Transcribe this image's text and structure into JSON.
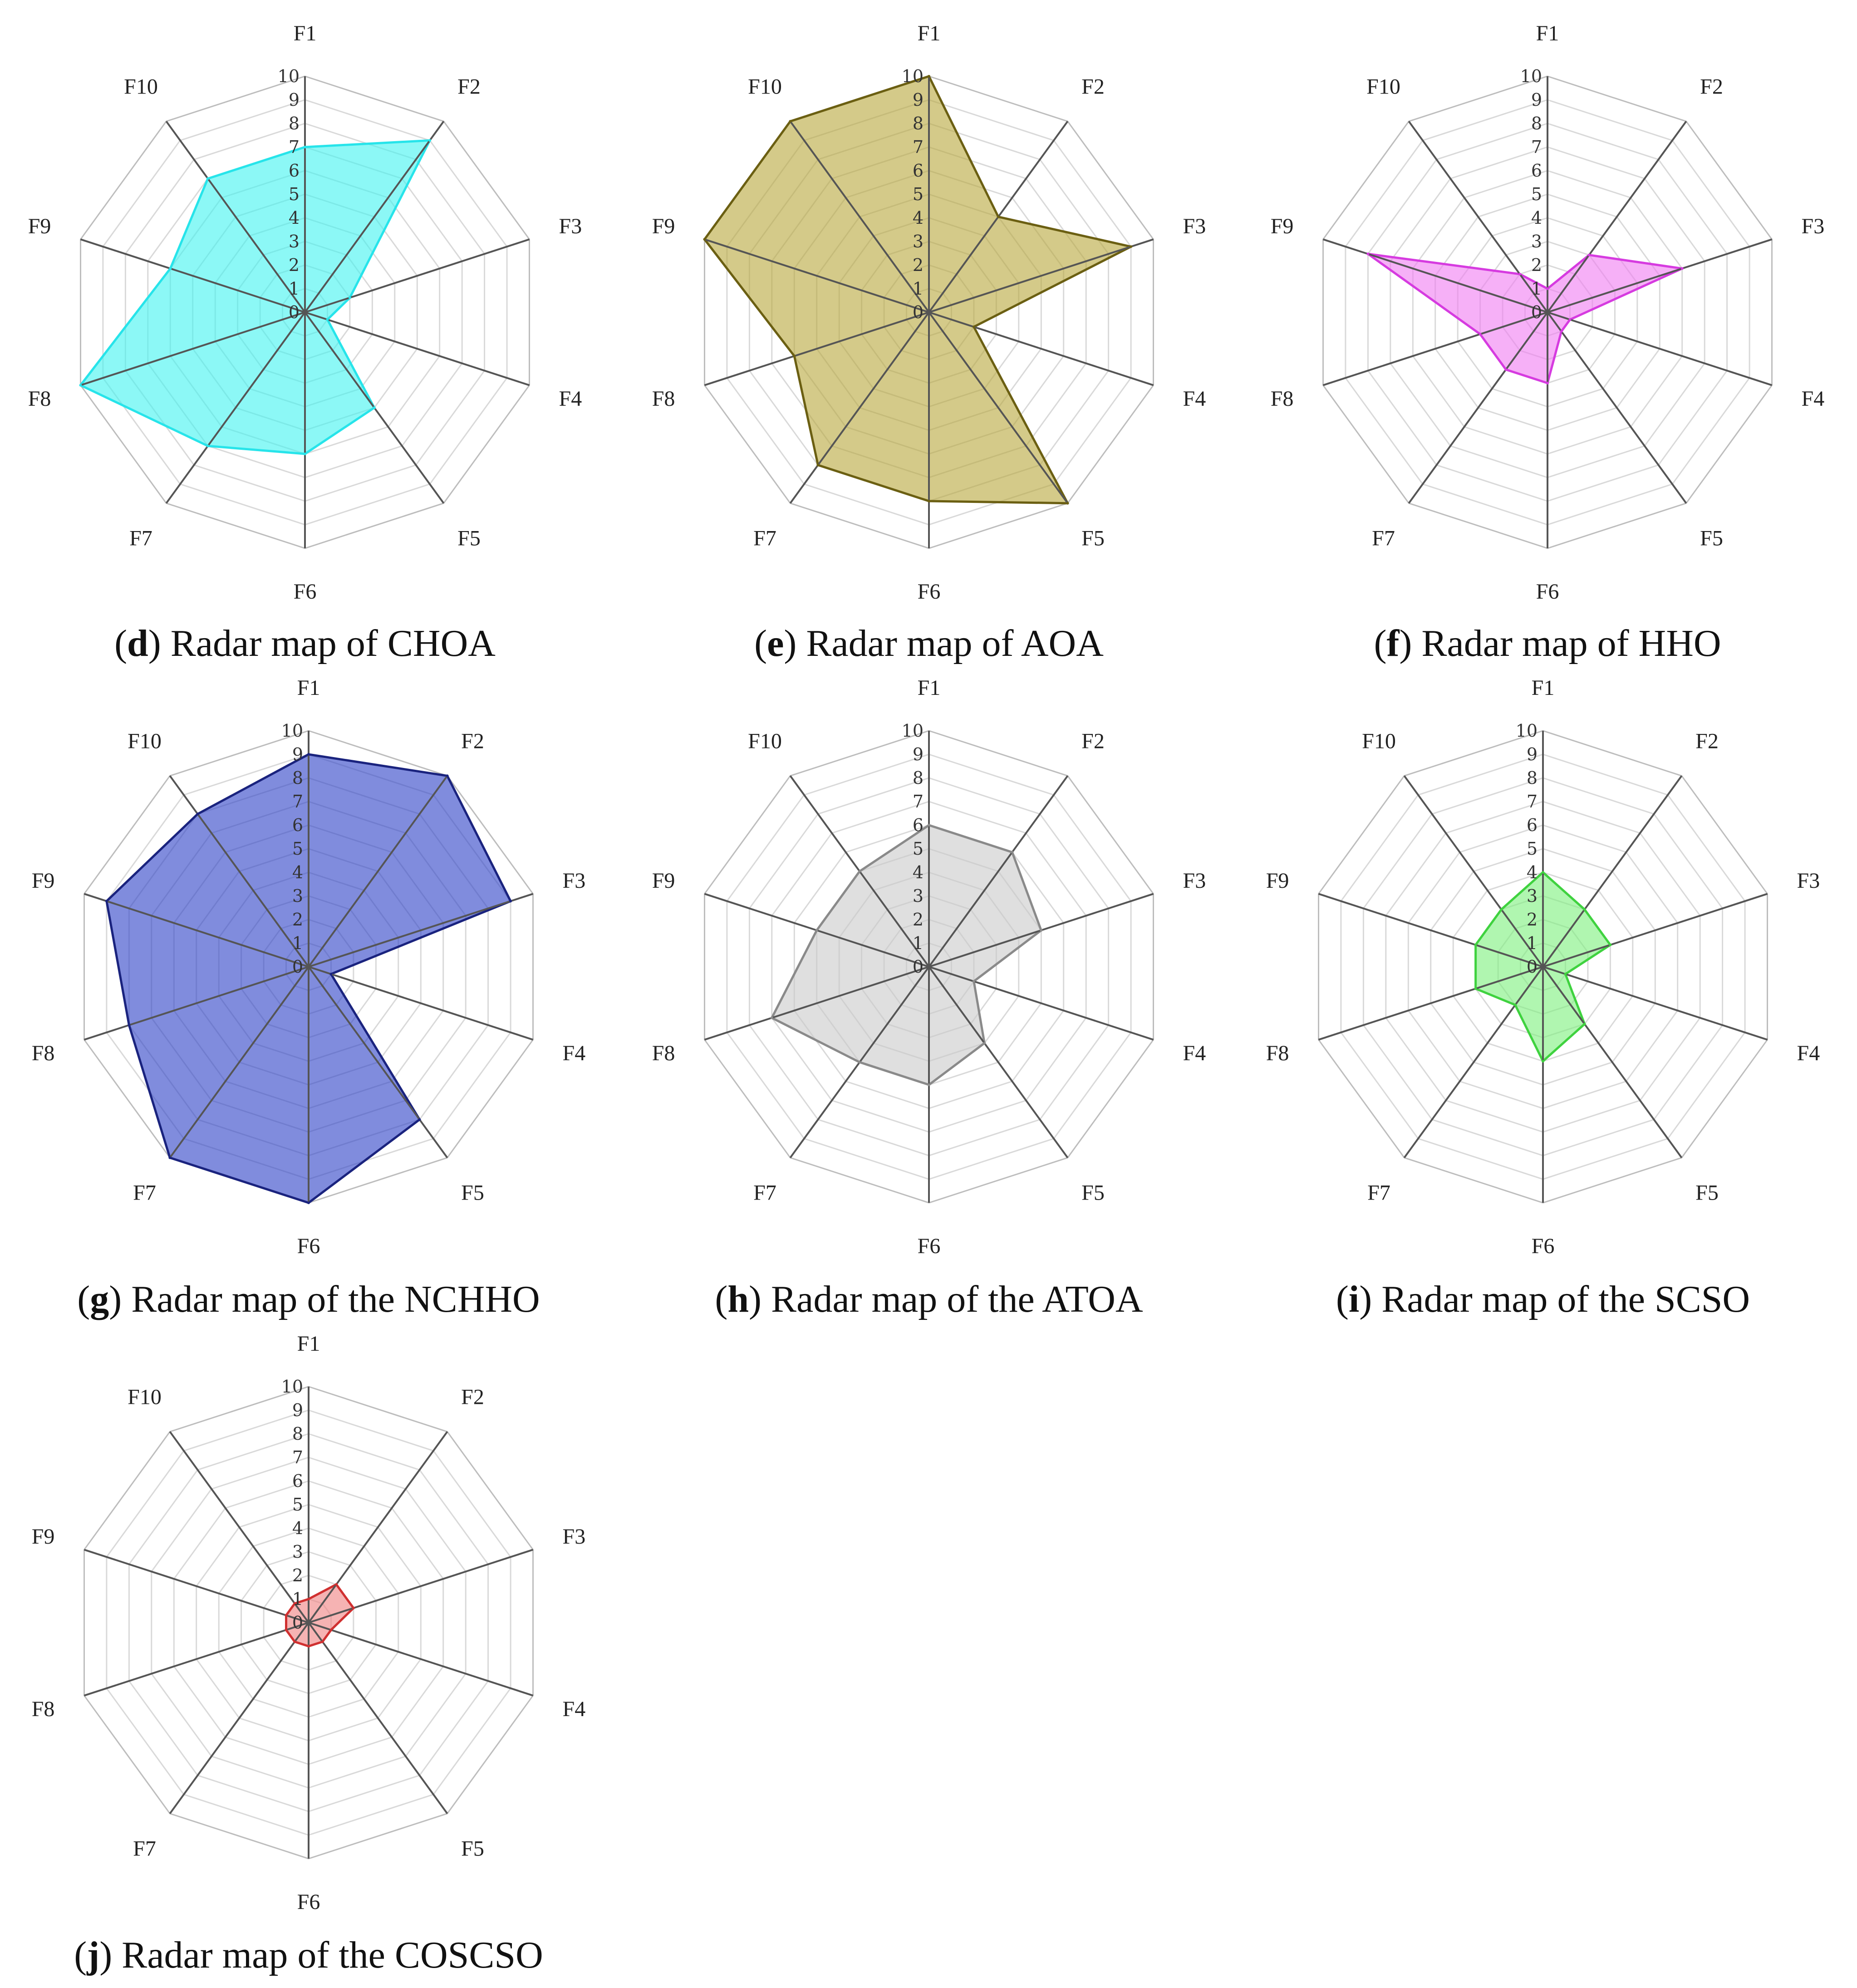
{
  "figure": {
    "rmax": 10,
    "ticks": [
      "0",
      "1",
      "2",
      "3",
      "4",
      "5",
      "6",
      "7",
      "8",
      "9",
      "10"
    ],
    "axes": [
      "F1",
      "F2",
      "F3",
      "F4",
      "F5",
      "F6",
      "F7",
      "F8",
      "F9",
      "F10"
    ]
  },
  "chart_data": [
    {
      "type": "radar",
      "letter": "d",
      "title": "Radar map of CHOA",
      "color": "#3FF3F0",
      "stroke": "#27E4EA",
      "series": [
        {
          "name": "CHOA",
          "values": [
            7,
            9,
            2,
            1,
            5,
            6,
            7,
            10,
            6,
            7
          ]
        }
      ]
    },
    {
      "type": "radar",
      "letter": "e",
      "title": "Radar map of AOA",
      "color": "#B8A73A",
      "stroke": "#6B5F12",
      "series": [
        {
          "name": "AOA",
          "values": [
            10,
            5,
            9,
            2,
            10,
            8,
            8,
            6,
            10,
            10
          ]
        }
      ]
    },
    {
      "type": "radar",
      "letter": "f",
      "title": "Radar map of HHO",
      "color": "#F07CF2",
      "stroke": "#D63BE0",
      "series": [
        {
          "name": "HHO",
          "values": [
            1,
            3,
            6,
            1,
            1,
            3,
            3,
            3,
            8,
            2
          ]
        }
      ]
    },
    {
      "type": "radar",
      "letter": "g",
      "title": "Radar map of the NCHHO",
      "prefix": "Radar map of the ",
      "color": "#2B3FC7",
      "stroke": "#1A237E",
      "series": [
        {
          "name": "NCHHO",
          "values": [
            9,
            10,
            9,
            1,
            8,
            10,
            10,
            8,
            9,
            8
          ]
        }
      ]
    },
    {
      "type": "radar",
      "letter": "h",
      "title": "Radar map of the ATOA",
      "color": "#C9C9C9",
      "stroke": "#8A8A8A",
      "series": [
        {
          "name": "ATOA",
          "values": [
            6,
            6,
            5,
            2,
            4,
            5,
            5,
            7,
            5,
            5
          ]
        }
      ]
    },
    {
      "type": "radar",
      "letter": "i",
      "title": "Radar map of the SCSO",
      "color": "#7CF07C",
      "stroke": "#3FD23F",
      "series": [
        {
          "name": "SCSO",
          "values": [
            4,
            3,
            3,
            1,
            3,
            4,
            2,
            3,
            3,
            3
          ]
        }
      ]
    },
    {
      "type": "radar",
      "letter": "j",
      "title": "Radar map of the COSCSO",
      "color": "#F08080",
      "stroke": "#D03030",
      "series": [
        {
          "name": "COSCSO",
          "values": [
            1,
            2,
            2,
            1,
            1,
            1,
            1,
            1,
            1,
            1
          ]
        }
      ]
    }
  ]
}
